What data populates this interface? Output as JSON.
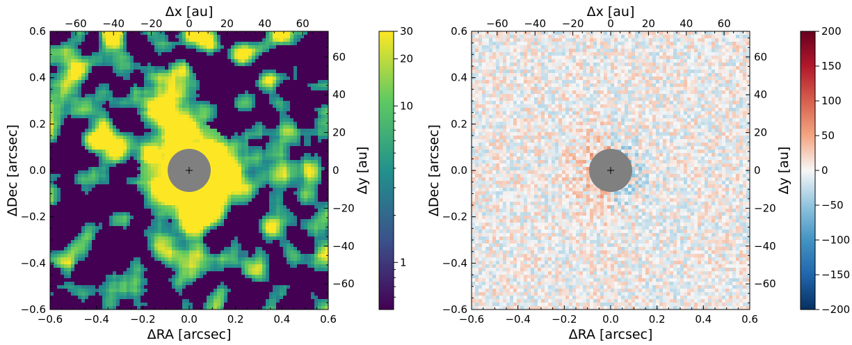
{
  "chart_data": [
    {
      "type": "heatmap",
      "xlabel": "ΔRA [arcsec]",
      "ylabel": "ΔDec [arcsec]",
      "xlim": [
        -0.6,
        0.6
      ],
      "ylim": [
        -0.6,
        0.6
      ],
      "x_ticks": [
        "−0.6",
        "−0.4",
        "−0.2",
        "0.0",
        "0.2",
        "0.4",
        "0.6"
      ],
      "y_ticks": [
        "−0.6",
        "−0.4",
        "−0.2",
        "0.0",
        "0.2",
        "0.4",
        "0.6"
      ],
      "top_axis": {
        "label": "Δx [au]",
        "ticks": [
          "−60",
          "−40",
          "−20",
          "0",
          "20",
          "40",
          "60"
        ]
      },
      "right_axis": {
        "label": "Δy [au]",
        "ticks": [
          "−60",
          "−40",
          "−20",
          "0",
          "20",
          "40",
          "60"
        ]
      },
      "colorbar": {
        "scale": "log",
        "range": [
          0.5,
          30
        ],
        "colormap": "viridis",
        "ticks": [
          "1",
          "10",
          "20",
          "30"
        ]
      },
      "mask": {
        "center": [
          0,
          0
        ],
        "radius_arcsec": 0.09,
        "color": "#808080",
        "marker": "+"
      },
      "pixel_scale_au_per_arcsec": 122.6
    },
    {
      "type": "heatmap",
      "xlabel": "ΔRA [arcsec]",
      "ylabel": "ΔDec [arcsec]",
      "xlim": [
        -0.6,
        0.6
      ],
      "ylim": [
        -0.6,
        0.6
      ],
      "x_ticks": [
        "−0.6",
        "−0.4",
        "−0.2",
        "0.0",
        "0.2",
        "0.4",
        "0.6"
      ],
      "y_ticks": [
        "−0.6",
        "−0.4",
        "−0.2",
        "0.0",
        "0.2",
        "0.4",
        "0.6"
      ],
      "top_axis": {
        "label": "Δx [au]",
        "ticks": [
          "−60",
          "−40",
          "−20",
          "0",
          "20",
          "40",
          "60"
        ]
      },
      "right_axis": {
        "label": "Δy [au]",
        "ticks": [
          "−60",
          "−40",
          "−20",
          "0",
          "20",
          "40",
          "60"
        ]
      },
      "colorbar": {
        "scale": "linear",
        "range": [
          -200,
          200
        ],
        "colormap": "RdBu_r",
        "ticks": [
          "200",
          "150",
          "100",
          "50",
          "0",
          "−50",
          "−100",
          "−150",
          "−200"
        ]
      },
      "mask": {
        "center": [
          0,
          0
        ],
        "radius_arcsec": 0.09,
        "color": "#808080",
        "marker": "+"
      },
      "pixel_scale_au_per_arcsec": 122.6
    }
  ]
}
